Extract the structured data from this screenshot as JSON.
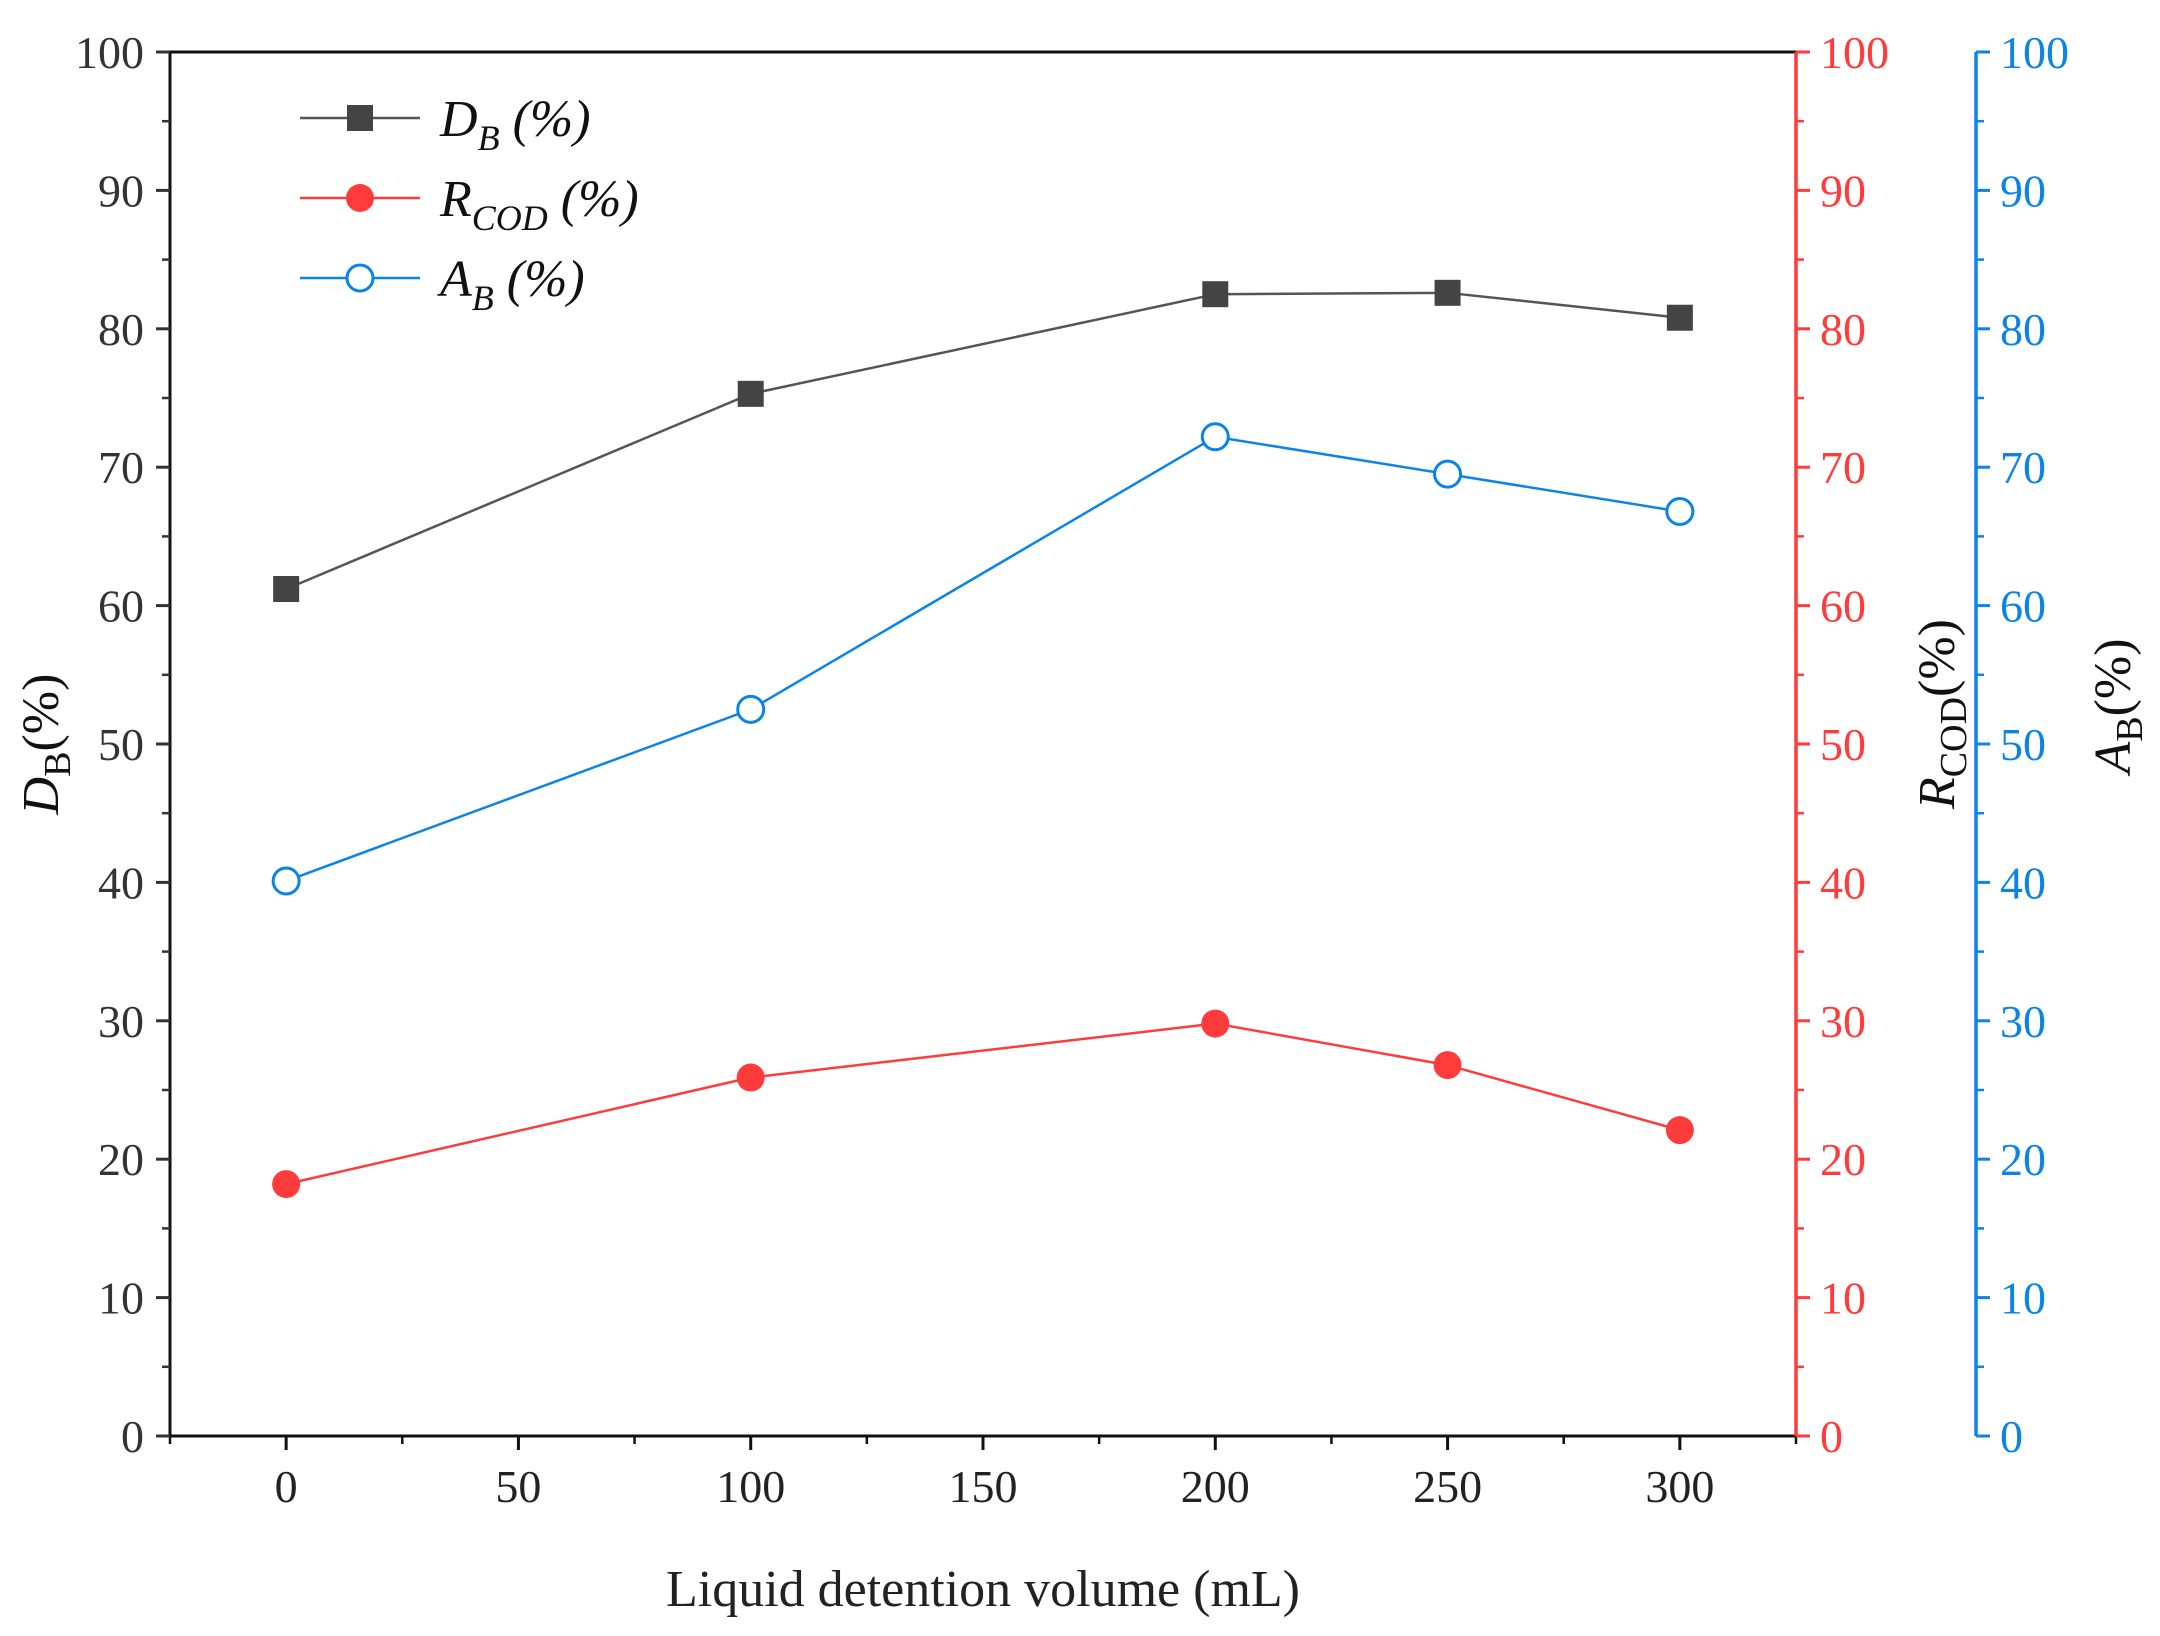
{
  "chart_data": {
    "type": "line",
    "title": "",
    "xlabel": "Liquid detention volume (mL)",
    "x": [
      0,
      100,
      200,
      250,
      300
    ],
    "xlim": [
      -25,
      325
    ],
    "xticks": [
      0,
      50,
      100,
      150,
      200,
      250,
      300
    ],
    "xtick_labels": [
      "0",
      "50",
      "100",
      "150",
      "200",
      "250",
      "300"
    ],
    "yticks": [
      0,
      10,
      20,
      30,
      40,
      50,
      60,
      70,
      80,
      90,
      100
    ],
    "ytick_labels": [
      "0",
      "10",
      "20",
      "30",
      "40",
      "50",
      "60",
      "70",
      "80",
      "90",
      "100"
    ],
    "axes": {
      "left": {
        "label_main": "D",
        "label_sub": "B",
        "label_tail": "(%)",
        "ylim": [
          0,
          100
        ],
        "color": "#333333"
      },
      "right1": {
        "label_main": "R",
        "label_sub": "COD",
        "label_tail": "(%)",
        "ylim": [
          0,
          100
        ],
        "color": "#ff3b3b"
      },
      "right2": {
        "label_main": "A",
        "label_sub": "B",
        "label_tail": "(%)",
        "ylim": [
          0,
          100
        ],
        "color": "#0b84e5"
      }
    },
    "series": [
      {
        "name": "D_B (%)",
        "legend_main": "D",
        "legend_sub": "B",
        "legend_tail": " (%)",
        "axis": "left",
        "marker": "square",
        "color": "#444444",
        "line_color": "#555555",
        "values": [
          61.2,
          75.3,
          82.5,
          82.6,
          80.8
        ]
      },
      {
        "name": "R_COD (%)",
        "legend_main": "R",
        "legend_sub": "COD",
        "legend_tail": " (%)",
        "axis": "right1",
        "marker": "filled-circle",
        "color": "#ff3b3b",
        "line_color": "#ff3b3b",
        "values": [
          18.2,
          25.9,
          29.8,
          26.8,
          22.1
        ]
      },
      {
        "name": "A_B (%)",
        "legend_main": "A",
        "legend_sub": "B",
        "legend_tail": " (%)",
        "axis": "right2",
        "marker": "open-circle",
        "color": "#0b84e5",
        "line_color": "#0b84e5",
        "values": [
          40.1,
          52.5,
          72.2,
          69.5,
          66.8
        ]
      }
    ],
    "legend_position": "top-left"
  }
}
